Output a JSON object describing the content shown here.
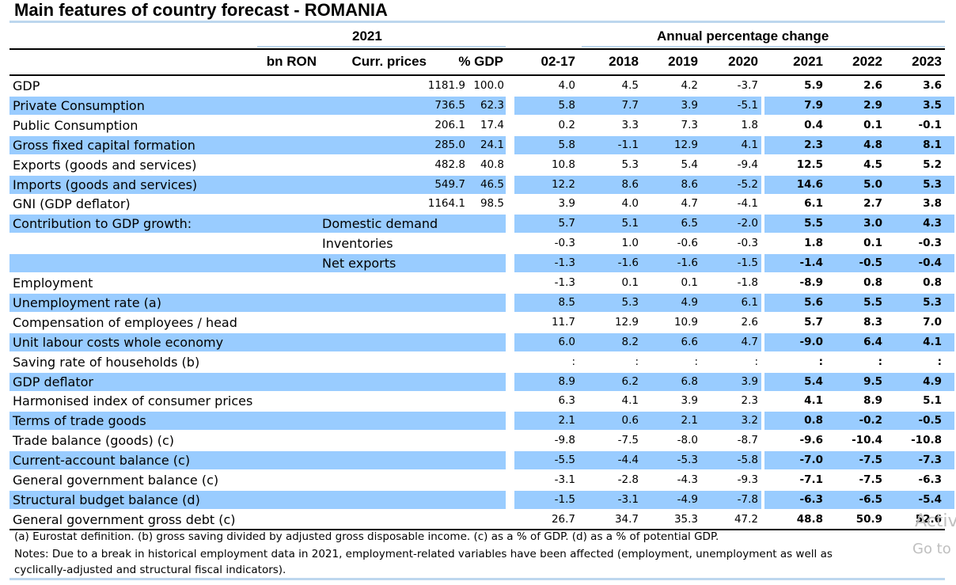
{
  "title": "Main features of country forecast - ROMANIA",
  "groups": {
    "left": "2021",
    "right": "Annual percentage change"
  },
  "columns": {
    "unit": "bn RON",
    "curr": "Curr. prices",
    "gdp": "% GDP",
    "y0217": "02-17",
    "y2018": "2018",
    "y2019": "2019",
    "y2020": "2020",
    "y2021": "2021",
    "y2022": "2022",
    "y2023": "2023"
  },
  "rows": [
    {
      "label": "GDP",
      "sub": "",
      "shaded": false,
      "curr": "1181.9",
      "gdp": "100.0",
      "v": [
        "4.0",
        "4.5",
        "4.2",
        "-3.7"
      ],
      "f": [
        "5.9",
        "2.6",
        "3.6"
      ]
    },
    {
      "label": "Private Consumption",
      "sub": "",
      "shaded": true,
      "curr": "736.5",
      "gdp": "62.3",
      "v": [
        "5.8",
        "7.7",
        "3.9",
        "-5.1"
      ],
      "f": [
        "7.9",
        "2.9",
        "3.5"
      ]
    },
    {
      "label": "Public Consumption",
      "sub": "",
      "shaded": false,
      "curr": "206.1",
      "gdp": "17.4",
      "v": [
        "0.2",
        "3.3",
        "7.3",
        "1.8"
      ],
      "f": [
        "0.4",
        "0.1",
        "-0.1"
      ]
    },
    {
      "label": "Gross fixed capital formation",
      "sub": "",
      "shaded": true,
      "curr": "285.0",
      "gdp": "24.1",
      "v": [
        "5.8",
        "-1.1",
        "12.9",
        "4.1"
      ],
      "f": [
        "2.3",
        "4.8",
        "8.1"
      ]
    },
    {
      "label": "Exports (goods and services)",
      "sub": "",
      "shaded": false,
      "curr": "482.8",
      "gdp": "40.8",
      "v": [
        "10.8",
        "5.3",
        "5.4",
        "-9.4"
      ],
      "f": [
        "12.5",
        "4.5",
        "5.2"
      ]
    },
    {
      "label": "Imports (goods and services)",
      "sub": "",
      "shaded": true,
      "curr": "549.7",
      "gdp": "46.5",
      "v": [
        "12.2",
        "8.6",
        "8.6",
        "-5.2"
      ],
      "f": [
        "14.6",
        "5.0",
        "5.3"
      ]
    },
    {
      "label": "GNI (GDP deflator)",
      "sub": "",
      "shaded": false,
      "curr": "1164.1",
      "gdp": "98.5",
      "v": [
        "3.9",
        "4.0",
        "4.7",
        "-4.1"
      ],
      "f": [
        "6.1",
        "2.7",
        "3.8"
      ]
    },
    {
      "label": "Contribution to GDP growth:",
      "sub": "Domestic demand",
      "shaded": true,
      "curr": "",
      "gdp": "",
      "v": [
        "5.7",
        "5.1",
        "6.5",
        "-2.0"
      ],
      "f": [
        "5.5",
        "3.0",
        "4.3"
      ]
    },
    {
      "label": "",
      "sub": "Inventories",
      "shaded": false,
      "curr": "",
      "gdp": "",
      "v": [
        "-0.3",
        "1.0",
        "-0.6",
        "-0.3"
      ],
      "f": [
        "1.8",
        "0.1",
        "-0.3"
      ]
    },
    {
      "label": "",
      "sub": "Net exports",
      "shaded": true,
      "curr": "",
      "gdp": "",
      "v": [
        "-1.3",
        "-1.6",
        "-1.6",
        "-1.5"
      ],
      "f": [
        "-1.4",
        "-0.5",
        "-0.4"
      ]
    },
    {
      "label": "Employment",
      "sub": "",
      "shaded": false,
      "curr": "",
      "gdp": "",
      "v": [
        "-1.3",
        "0.1",
        "0.1",
        "-1.8"
      ],
      "f": [
        "-8.9",
        "0.8",
        "0.8"
      ]
    },
    {
      "label": "Unemployment rate (a)",
      "sub": "",
      "shaded": true,
      "curr": "",
      "gdp": "",
      "v": [
        "8.5",
        "5.3",
        "4.9",
        "6.1"
      ],
      "f": [
        "5.6",
        "5.5",
        "5.3"
      ]
    },
    {
      "label": "Compensation of employees / head",
      "sub": "",
      "shaded": false,
      "curr": "",
      "gdp": "",
      "v": [
        "11.7",
        "12.9",
        "10.9",
        "2.6"
      ],
      "f": [
        "5.7",
        "8.3",
        "7.0"
      ]
    },
    {
      "label": "Unit labour costs whole economy",
      "sub": "",
      "shaded": true,
      "curr": "",
      "gdp": "",
      "v": [
        "6.0",
        "8.2",
        "6.6",
        "4.7"
      ],
      "f": [
        "-9.0",
        "6.4",
        "4.1"
      ]
    },
    {
      "label": "Saving rate of households (b)",
      "sub": "",
      "shaded": false,
      "curr": "",
      "gdp": "",
      "v": [
        ":",
        ":",
        ":",
        ":"
      ],
      "f": [
        ":",
        ":",
        ":"
      ]
    },
    {
      "label": "GDP deflator",
      "sub": "",
      "shaded": true,
      "curr": "",
      "gdp": "",
      "v": [
        "8.9",
        "6.2",
        "6.8",
        "3.9"
      ],
      "f": [
        "5.4",
        "9.5",
        "4.9"
      ]
    },
    {
      "label": "Harmonised index of consumer prices",
      "sub": "",
      "shaded": false,
      "curr": "",
      "gdp": "",
      "v": [
        "6.3",
        "4.1",
        "3.9",
        "2.3"
      ],
      "f": [
        "4.1",
        "8.9",
        "5.1"
      ]
    },
    {
      "label": "Terms of trade goods",
      "sub": "",
      "shaded": true,
      "curr": "",
      "gdp": "",
      "v": [
        "2.1",
        "0.6",
        "2.1",
        "3.2"
      ],
      "f": [
        "0.8",
        "-0.2",
        "-0.5"
      ]
    },
    {
      "label": "Trade balance (goods) (c)",
      "sub": "",
      "shaded": false,
      "curr": "",
      "gdp": "",
      "v": [
        "-9.8",
        "-7.5",
        "-8.0",
        "-8.7"
      ],
      "f": [
        "-9.6",
        "-10.4",
        "-10.8"
      ]
    },
    {
      "label": "Current-account balance (c)",
      "sub": "",
      "shaded": true,
      "curr": "",
      "gdp": "",
      "v": [
        "-5.5",
        "-4.4",
        "-5.3",
        "-5.8"
      ],
      "f": [
        "-7.0",
        "-7.5",
        "-7.3"
      ]
    },
    {
      "label": "General government balance (c)",
      "sub": "",
      "shaded": false,
      "curr": "",
      "gdp": "",
      "v": [
        "-3.1",
        "-2.8",
        "-4.3",
        "-9.3"
      ],
      "f": [
        "-7.1",
        "-7.5",
        "-6.3"
      ]
    },
    {
      "label": "Structural budget balance (d)",
      "sub": "",
      "shaded": true,
      "curr": "",
      "gdp": "",
      "v": [
        "-1.5",
        "-3.1",
        "-4.9",
        "-7.8"
      ],
      "f": [
        "-6.3",
        "-6.5",
        "-5.4"
      ]
    },
    {
      "label": "General government gross debt (c)",
      "sub": "",
      "shaded": false,
      "curr": "",
      "gdp": "",
      "v": [
        "26.7",
        "34.7",
        "35.3",
        "47.2"
      ],
      "f": [
        "48.8",
        "50.9",
        "52.6"
      ]
    }
  ],
  "footnotes": {
    "line1": "(a) Eurostat definition.  (b) gross saving divided by adjusted gross disposable income.  (c) as a % of GDP. (d) as a % of potential GDP.",
    "line2": "Notes: Due to a break in historical employment data in 2021, employment-related  variables have been affected (employment, unemployment as well as",
    "line3": "cyclically-adjusted and structural fiscal indicators)."
  },
  "watermark": {
    "line1": "Activ",
    "line2": "Go to"
  }
}
